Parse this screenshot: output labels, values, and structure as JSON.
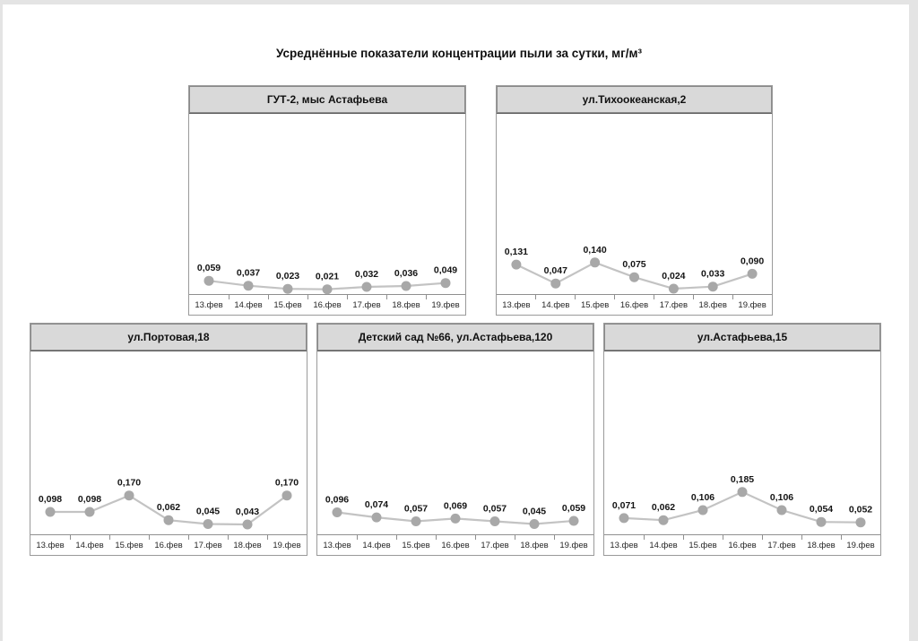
{
  "page": {
    "title": "Усреднённые показатели концентрации пыли за сутки, мг/м³"
  },
  "colors": {
    "dot": "#a8a8a8",
    "line": "#c3c3c3",
    "header_bg": "#d9d9d9",
    "border": "#9a9a9a",
    "value_text": "#141414"
  },
  "chart_data": [
    {
      "type": "line",
      "title": "ГУТ-2, мыс Астафьева",
      "categories": [
        "13.фев",
        "14.фев",
        "15.фев",
        "16.фев",
        "17.фев",
        "18.фев",
        "19.фев"
      ],
      "values": [
        0.059,
        0.037,
        0.023,
        0.021,
        0.032,
        0.036,
        0.049
      ],
      "labels": [
        "0,059",
        "0,037",
        "0,023",
        "0,021",
        "0,032",
        "0,036",
        "0,049"
      ],
      "ylim": [
        0,
        0.8
      ],
      "grid": false,
      "legend": false
    },
    {
      "type": "line",
      "title": "ул.Тихоокеанская,2",
      "categories": [
        "13.фев",
        "14.фев",
        "15.фев",
        "16.фев",
        "17.фев",
        "18.фев",
        "19.фев"
      ],
      "values": [
        0.131,
        0.047,
        0.14,
        0.075,
        0.024,
        0.033,
        0.09
      ],
      "labels": [
        "0,131",
        "0,047",
        "0,140",
        "0,075",
        "0,024",
        "0,033",
        "0,090"
      ],
      "ylim": [
        0,
        0.8
      ],
      "grid": false,
      "legend": false
    },
    {
      "type": "line",
      "title": "ул.Портовая,18",
      "categories": [
        "13.фев",
        "14.фев",
        "15.фев",
        "16.фев",
        "17.фев",
        "18.фев",
        "19.фев"
      ],
      "values": [
        0.098,
        0.098,
        0.17,
        0.062,
        0.045,
        0.043,
        0.17
      ],
      "labels": [
        "0,098",
        "0,098",
        "0,170",
        "0,062",
        "0,045",
        "0,043",
        "0,170"
      ],
      "ylim": [
        0,
        0.8
      ],
      "grid": false,
      "legend": false
    },
    {
      "type": "line",
      "title": "Детский сад №66, ул.Астафьева,120",
      "categories": [
        "13.фев",
        "14.фев",
        "15.фев",
        "16.фев",
        "17.фев",
        "18.фев",
        "19.фев"
      ],
      "values": [
        0.096,
        0.074,
        0.057,
        0.069,
        0.057,
        0.045,
        0.059
      ],
      "labels": [
        "0,096",
        "0,074",
        "0,057",
        "0,069",
        "0,057",
        "0,045",
        "0,059"
      ],
      "ylim": [
        0,
        0.8
      ],
      "grid": false,
      "legend": false
    },
    {
      "type": "line",
      "title": "ул.Астафьева,15",
      "categories": [
        "13.фев",
        "14.фев",
        "15.фев",
        "16.фев",
        "17.фев",
        "18.фев",
        "19.фев"
      ],
      "values": [
        0.071,
        0.062,
        0.106,
        0.185,
        0.106,
        0.054,
        0.052
      ],
      "labels": [
        "0,071",
        "0,062",
        "0,106",
        "0,185",
        "0,106",
        "0,054",
        "0,052"
      ],
      "ylim": [
        0,
        0.8
      ],
      "grid": false,
      "legend": false
    }
  ]
}
